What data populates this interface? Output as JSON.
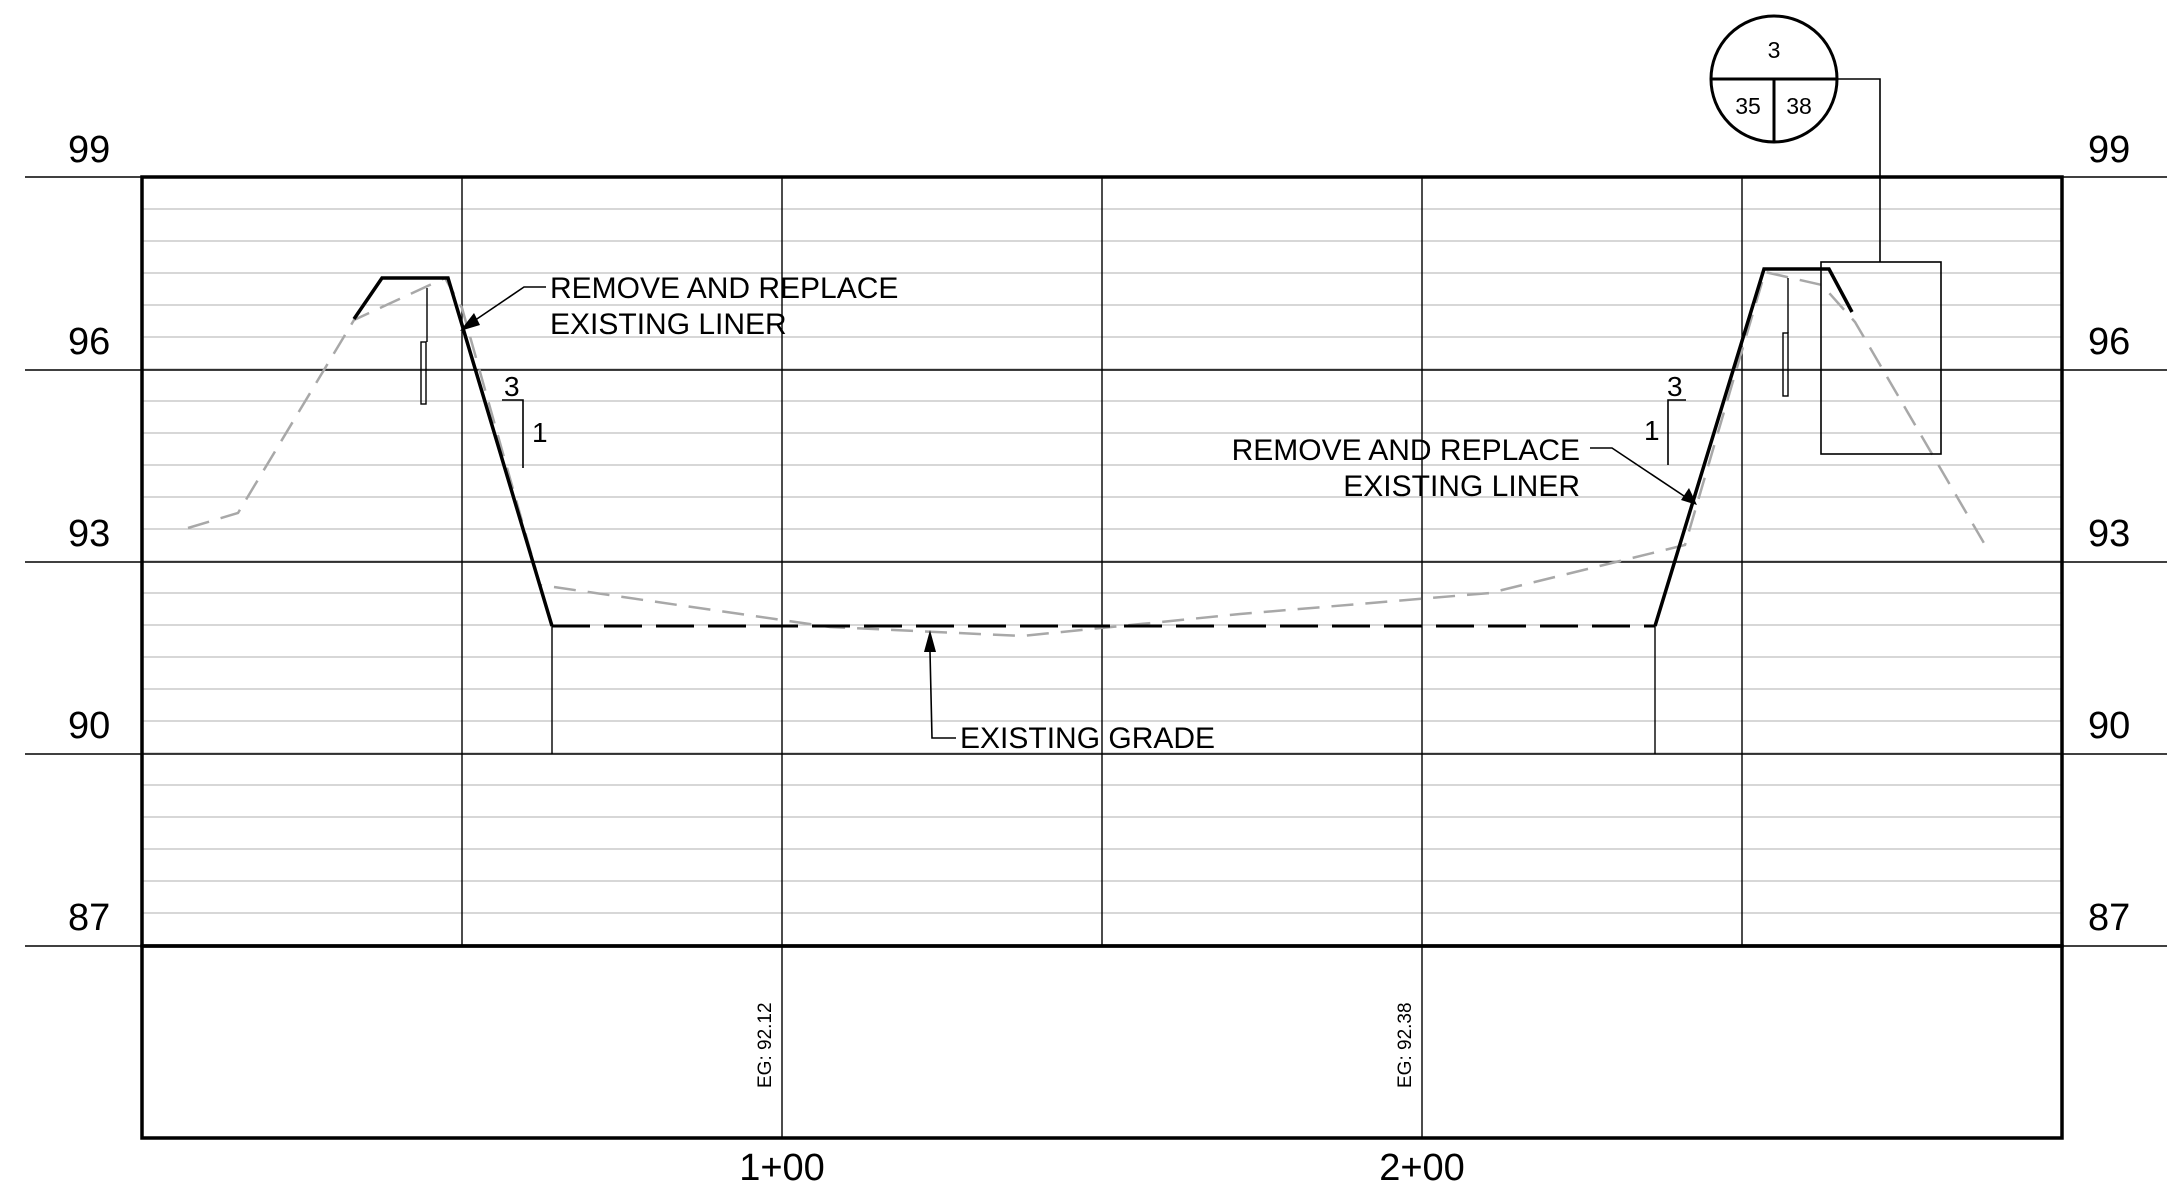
{
  "elevation_labels": [
    "99",
    "96",
    "93",
    "90",
    "87"
  ],
  "station_labels": [
    "1+00",
    "2+00"
  ],
  "notes": {
    "left_liner": {
      "line1": "REMOVE AND REPLACE",
      "line2": "EXISTING LINER"
    },
    "right_liner": {
      "line1": "REMOVE AND REPLACE",
      "line2": "EXISTING LINER"
    },
    "existing_grade": "EXISTING GRADE"
  },
  "slopes": {
    "left": {
      "run": "3",
      "rise": "1"
    },
    "right": {
      "run": "3",
      "rise": "1"
    }
  },
  "eg_values": [
    "EG: 92.12",
    "EG: 92.38"
  ],
  "detail_tag": {
    "top": "3",
    "bottom_left": "35",
    "bottom_right": "38"
  },
  "colors": {
    "line": "#000000",
    "grid_minor": "#bfbfbf",
    "existing_grade": "#a8a8a8"
  }
}
